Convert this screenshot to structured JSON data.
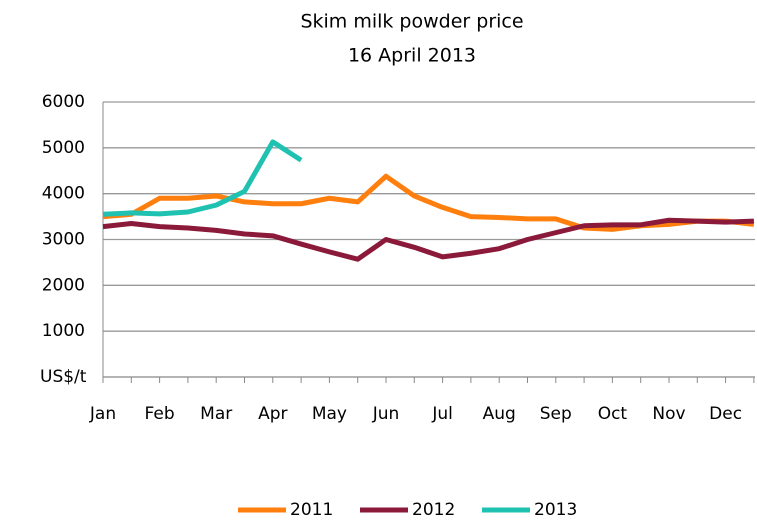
{
  "chart_data": {
    "type": "line",
    "title": "Skim milk powder price",
    "subtitle": "16 April 2013",
    "categories": [
      "Jan",
      null,
      "Feb",
      null,
      "Mar",
      null,
      "Apr",
      null,
      "May",
      null,
      "Jun",
      null,
      "Jul",
      null,
      "Aug",
      null,
      "Sep",
      null,
      "Oct",
      null,
      "Nov",
      null,
      "Dec",
      null
    ],
    "series": [
      {
        "name": "2011",
        "color": "#ff7f0e",
        "values": [
          3500,
          3550,
          3900,
          3900,
          3950,
          3820,
          3780,
          3780,
          3900,
          3820,
          4380,
          3950,
          3700,
          3500,
          3480,
          3450,
          3450,
          3250,
          3220,
          3300,
          3330,
          3400,
          3400,
          3330
        ]
      },
      {
        "name": "2012",
        "color": "#8b1a3a",
        "values": [
          3280,
          3350,
          3280,
          3250,
          3200,
          3120,
          3080,
          2900,
          2730,
          2570,
          3000,
          2830,
          2620,
          2700,
          2800,
          3000,
          3150,
          3300,
          3320,
          3320,
          3420,
          3400,
          3380,
          3400
        ]
      },
      {
        "name": "2013",
        "color": "#1fc2b0",
        "values": [
          3550,
          3580,
          3560,
          3600,
          3750,
          4050,
          5130,
          4730,
          null,
          null,
          null,
          null,
          null,
          null,
          null,
          null,
          null,
          null,
          null,
          null,
          null,
          null,
          null,
          null
        ]
      }
    ],
    "ylim": [
      0,
      6000
    ],
    "yticks": [
      {
        "value": 0,
        "label": "US$/t"
      },
      1000,
      2000,
      3000,
      4000,
      5000,
      6000
    ],
    "grid": true,
    "legend": "bottom"
  }
}
